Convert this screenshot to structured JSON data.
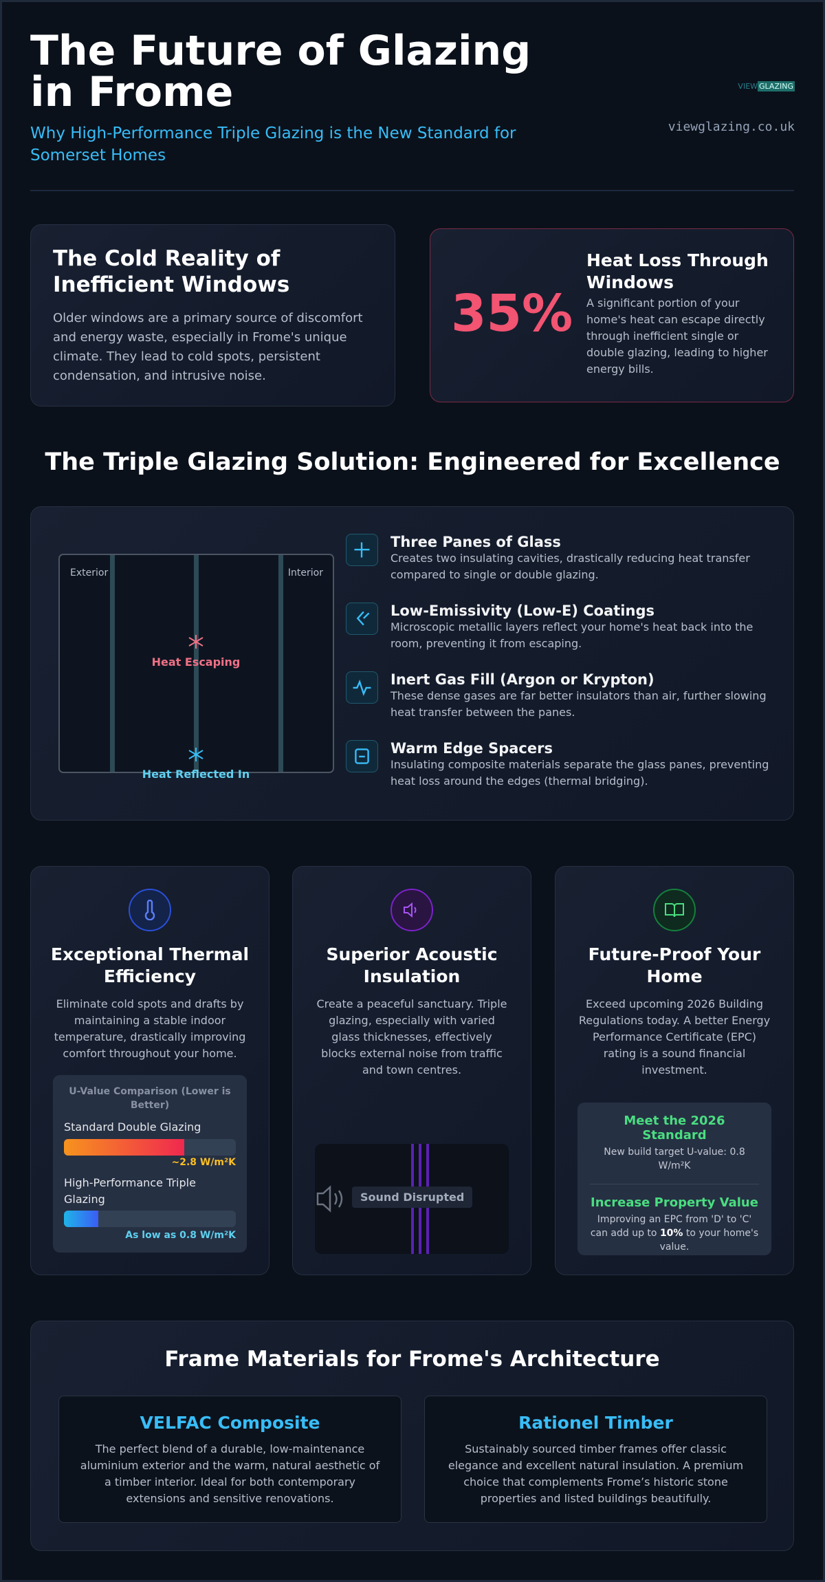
{
  "header": {
    "title": "The Future of Glazing in Frome",
    "subtitle": "Why High-Performance Triple Glazing is the New Standard for Somerset Homes",
    "logo": {
      "part1": "VIEW",
      "part2": "GLAZING"
    },
    "website": "viewglazing.co.uk"
  },
  "problem": {
    "title": "The Cold Reality of Inefficient Windows",
    "text": "Older windows are a primary source of discomfort and energy waste, especially in Frome's unique climate. They lead to cold spots, persistent condensation, and intrusive noise."
  },
  "stat": {
    "value": "35%",
    "title": "Heat Loss Through Windows",
    "text": "A significant portion of your home's heat can escape directly through inefficient single or double glazing, leading to higher energy bills."
  },
  "solution": {
    "title": "The Triple Glazing Solution: Engineered for Excellence",
    "diagram": {
      "exterior": "Exterior",
      "interior": "Interior",
      "heat_escaping": "Heat Escaping",
      "heat_reflected": "Heat Reflected In"
    },
    "features": [
      {
        "title": "Three Panes of Glass",
        "text": "Creates two insulating cavities, drastically reducing heat transfer compared to single or double glazing."
      },
      {
        "title": "Low-Emissivity (Low-E) Coatings",
        "text": "Microscopic metallic layers reflect your home's heat back into the room, preventing it from escaping."
      },
      {
        "title": "Inert Gas Fill (Argon or Krypton)",
        "text": "These dense gases are far better insulators than air, further slowing heat transfer between the panes."
      },
      {
        "title": "Warm Edge Spacers",
        "text": "Insulating composite materials separate the glass panes, preventing heat loss around the edges (thermal bridging)."
      }
    ]
  },
  "benefits": [
    {
      "title": "Exceptional Thermal Efficiency",
      "text": "Eliminate cold spots and drafts by maintaining a stable indoor temperature, drastically improving comfort throughout your home."
    },
    {
      "title": "Superior Acoustic Insulation",
      "text": "Create a peaceful sanctuary. Triple glazing, especially with varied glass thicknesses, effectively blocks external noise from traffic and town centres."
    },
    {
      "title": "Future-Proof Your Home",
      "text": "Exceed upcoming 2026 Building Regulations today. A better Energy Performance Certificate (EPC) rating is a sound financial investment."
    }
  ],
  "u_value": {
    "title": "U-Value Comparison (Lower is Better)",
    "items": [
      {
        "label": "Standard Double Glazing",
        "value": "~2.8 W/m²K"
      },
      {
        "label": "High-Performance Triple Glazing",
        "value": "As low as 0.8 W/m²K"
      }
    ]
  },
  "acoustic_visual": "Sound Disrupted",
  "standards": [
    {
      "title": "Meet the 2026 Standard",
      "text": "New build target U-value: 0.8 W/m²K"
    },
    {
      "title": "Increase Property Value",
      "text_before": "Improving an EPC from 'D' to 'C' can add up to",
      "bold": "10%",
      "text_after": "to your home's value."
    }
  ],
  "frames": {
    "title": "Frame Materials for Frome's Architecture",
    "items": [
      {
        "title": "VELFAC Composite",
        "text": "The perfect blend of a durable, low-maintenance aluminium exterior and the warm, natural aesthetic of a timber interior. Ideal for both contemporary extensions and sensitive renovations."
      },
      {
        "title": "Rationel Timber",
        "text": "Sustainably sourced timber frames offer classic elegance and excellent natural insulation. A premium choice that complements Frome’s historic stone properties and listed buildings beautifully."
      }
    ]
  }
}
